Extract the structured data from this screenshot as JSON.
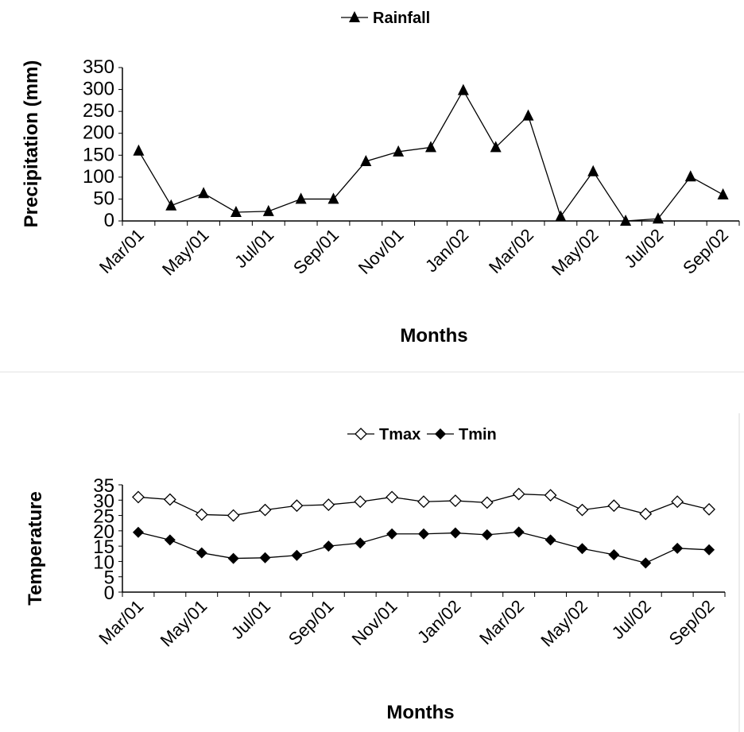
{
  "chart_data": [
    {
      "type": "line",
      "title": "",
      "xlabel": "Months",
      "ylabel": "Precipitation (mm)",
      "ylim": [
        0,
        350
      ],
      "yticks": [
        "0",
        "50",
        "100",
        "150",
        "200",
        "250",
        "300",
        "350"
      ],
      "tick_labels": [
        "Mar/01",
        "May/01",
        "Jul/01",
        "Sep/01",
        "Nov/01",
        "Jan/02",
        "Mar/02",
        "May/02",
        "Jul/02",
        "Sep/02"
      ],
      "categories": [
        "Mar/01",
        "Apr/01",
        "May/01",
        "Jun/01",
        "Jul/01",
        "Aug/01",
        "Sep/01",
        "Oct/01",
        "Nov/01",
        "Dec/01",
        "Jan/02",
        "Feb/02",
        "Mar/02",
        "Apr/02",
        "May/02",
        "Jun/02",
        "Jul/02",
        "Aug/02",
        "Sep/02"
      ],
      "series": [
        {
          "name": "Rainfall",
          "marker": "triangle-filled",
          "color": "#000000",
          "values": [
            160,
            35,
            63,
            20,
            22,
            50,
            50,
            136,
            158,
            168,
            298,
            168,
            240,
            10,
            113,
            0,
            5,
            101,
            60
          ]
        }
      ],
      "legend": "top-center",
      "grid": false
    },
    {
      "type": "line",
      "title": "",
      "xlabel": "Months",
      "ylabel": "Temperature",
      "ylim": [
        0,
        35
      ],
      "yticks": [
        "0",
        "5",
        "10",
        "15",
        "20",
        "25",
        "30",
        "35"
      ],
      "tick_labels": [
        "Mar/01",
        "May/01",
        "Jul/01",
        "Sep/01",
        "Nov/01",
        "Jan/02",
        "Mar/02",
        "May/02",
        "Jul/02",
        "Sep/02"
      ],
      "categories": [
        "Mar/01",
        "Apr/01",
        "May/01",
        "Jun/01",
        "Jul/01",
        "Aug/01",
        "Sep/01",
        "Oct/01",
        "Nov/01",
        "Dec/01",
        "Jan/02",
        "Feb/02",
        "Mar/02",
        "Apr/02",
        "May/02",
        "Jun/02",
        "Jul/02",
        "Aug/02",
        "Sep/02"
      ],
      "series": [
        {
          "name": "Tmax",
          "marker": "diamond-open",
          "color": "#000000",
          "values": [
            31,
            30.2,
            25.3,
            25,
            26.8,
            28.2,
            28.5,
            29.5,
            31,
            29.5,
            29.8,
            29.2,
            32,
            31.6,
            26.8,
            28.2,
            25.5,
            29.5,
            27
          ]
        },
        {
          "name": "Tmin",
          "marker": "diamond-filled",
          "color": "#000000",
          "values": [
            19.5,
            17,
            12.8,
            11,
            11.2,
            12,
            15,
            16,
            19,
            19,
            19.3,
            18.7,
            19.6,
            17,
            14.2,
            12.2,
            9.5,
            14.3,
            13.8
          ]
        }
      ],
      "legend": "top-center",
      "grid": false
    }
  ]
}
